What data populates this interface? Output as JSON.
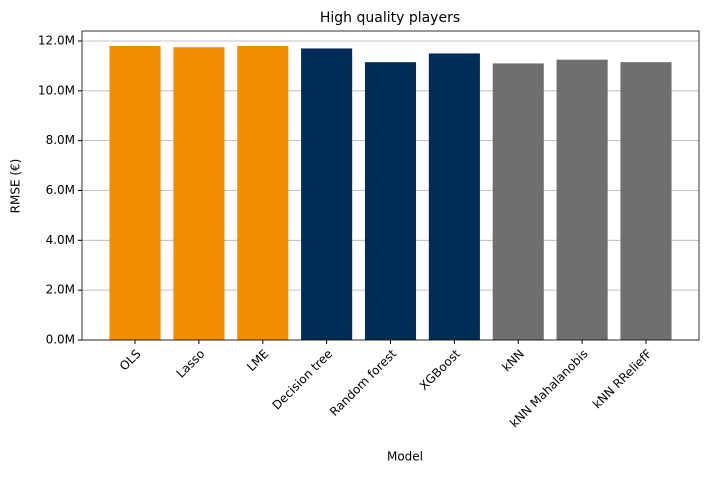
{
  "chart_data": {
    "type": "bar",
    "title": "High quality players",
    "xlabel": "Model",
    "ylabel": "RMSE (€)",
    "categories": [
      "OLS",
      "Lasso",
      "LME",
      "Decision tree",
      "Random forest",
      "XGBoost",
      "kNN",
      "kNN Mahalanobis",
      "kNN RReliefF"
    ],
    "values": [
      11800000,
      11750000,
      11800000,
      11700000,
      11150000,
      11500000,
      11100000,
      11250000,
      11150000
    ],
    "colors": [
      "#f28e00",
      "#f28e00",
      "#f28e00",
      "#002d57",
      "#002d57",
      "#002d57",
      "#6f6f6f",
      "#6f6f6f",
      "#6f6f6f"
    ],
    "ylim": [
      0,
      12400000
    ],
    "yticks": [
      {
        "value": 0,
        "label": "0.0M"
      },
      {
        "value": 2000000,
        "label": "2.0M"
      },
      {
        "value": 4000000,
        "label": "4.0M"
      },
      {
        "value": 6000000,
        "label": "6.0M"
      },
      {
        "value": 8000000,
        "label": "8.0M"
      },
      {
        "value": 10000000,
        "label": "10.0M"
      },
      {
        "value": 12000000,
        "label": "12.0M"
      }
    ],
    "grid": true
  }
}
